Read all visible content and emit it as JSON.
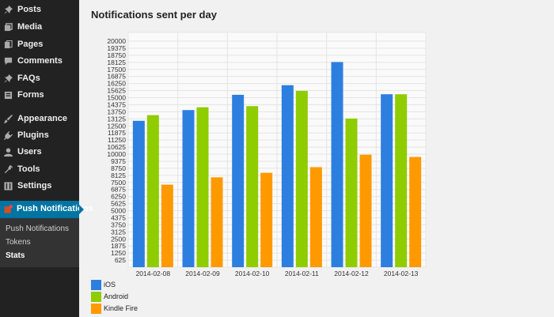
{
  "sidebar": {
    "items": [
      {
        "label": "Posts",
        "icon": "pin-icon"
      },
      {
        "label": "Media",
        "icon": "media-icon"
      },
      {
        "label": "Pages",
        "icon": "pages-icon"
      },
      {
        "label": "Comments",
        "icon": "comment-icon"
      },
      {
        "label": "FAQs",
        "icon": "pin-icon"
      },
      {
        "label": "Forms",
        "icon": "forms-icon"
      },
      {
        "label": "Appearance",
        "icon": "brush-icon"
      },
      {
        "label": "Plugins",
        "icon": "plugin-icon"
      },
      {
        "label": "Users",
        "icon": "user-icon"
      },
      {
        "label": "Tools",
        "icon": "wrench-icon"
      },
      {
        "label": "Settings",
        "icon": "settings-icon"
      },
      {
        "label": "Push Notifications",
        "icon": "push-icon",
        "active": true
      }
    ],
    "submenu": [
      {
        "label": "Push Notifications"
      },
      {
        "label": "Tokens"
      },
      {
        "label": "Stats",
        "current": true
      }
    ]
  },
  "page": {
    "title": "Notifications sent per day"
  },
  "colors": {
    "ios": "#2d7fdf",
    "android": "#8fcc00",
    "kindle": "#ff9900",
    "sidebar": "#222222",
    "active": "#0074a2"
  },
  "chart_data": {
    "type": "bar",
    "categories": [
      "2014-02-08",
      "2014-02-09",
      "2014-02-10",
      "2014-02-11",
      "2014-02-12",
      "2014-02-13"
    ],
    "series": [
      {
        "name": "iOS",
        "values": [
          12950,
          13900,
          15250,
          16100,
          18150,
          15300
        ]
      },
      {
        "name": "Android",
        "values": [
          13450,
          14150,
          14250,
          15600,
          13150,
          15300
        ]
      },
      {
        "name": "Kindle Fire",
        "values": [
          7300,
          7950,
          8350,
          8850,
          9950,
          9750
        ]
      }
    ],
    "yticks": [
      625,
      1250,
      1875,
      2500,
      3125,
      3750,
      4375,
      5000,
      5625,
      6250,
      6875,
      7500,
      8125,
      8750,
      9375,
      10000,
      10625,
      11250,
      11875,
      12500,
      13125,
      13750,
      14375,
      15000,
      15625,
      16250,
      16875,
      17500,
      18125,
      18750,
      19375,
      20000
    ],
    "ylim": [
      0,
      20000
    ],
    "grid": true,
    "legend_position": "bottom-left"
  }
}
